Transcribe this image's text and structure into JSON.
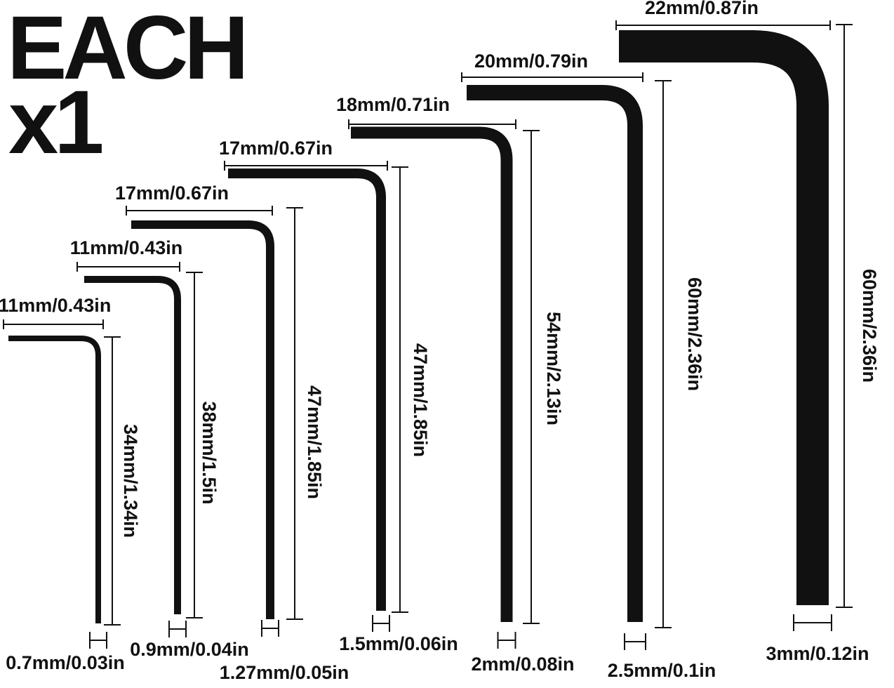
{
  "heading": {
    "line1": "EACH",
    "line2": "x1"
  },
  "keys": [
    {
      "short_arm": "11mm/0.43in",
      "long_arm": "34mm/1.34in",
      "size": "0.7mm/0.03in"
    },
    {
      "short_arm": "11mm/0.43in",
      "long_arm": "38mm/1.5in",
      "size": "0.9mm/0.04in"
    },
    {
      "short_arm": "17mm/0.67in",
      "long_arm": "47mm/1.85in",
      "size": "1.27mm/0.05in"
    },
    {
      "short_arm": "17mm/0.67in",
      "long_arm": "47mm/1.85in",
      "size": "1.5mm/0.06in"
    },
    {
      "short_arm": "18mm/0.71in",
      "long_arm": "54mm/2.13in",
      "size": "2mm/0.08in"
    },
    {
      "short_arm": "20mm/0.79in",
      "long_arm": "60mm/2.36in",
      "size": "2.5mm/0.1in"
    },
    {
      "short_arm": "22mm/0.87in",
      "long_arm": "60mm/2.36in",
      "size": "3mm/0.12in"
    }
  ]
}
